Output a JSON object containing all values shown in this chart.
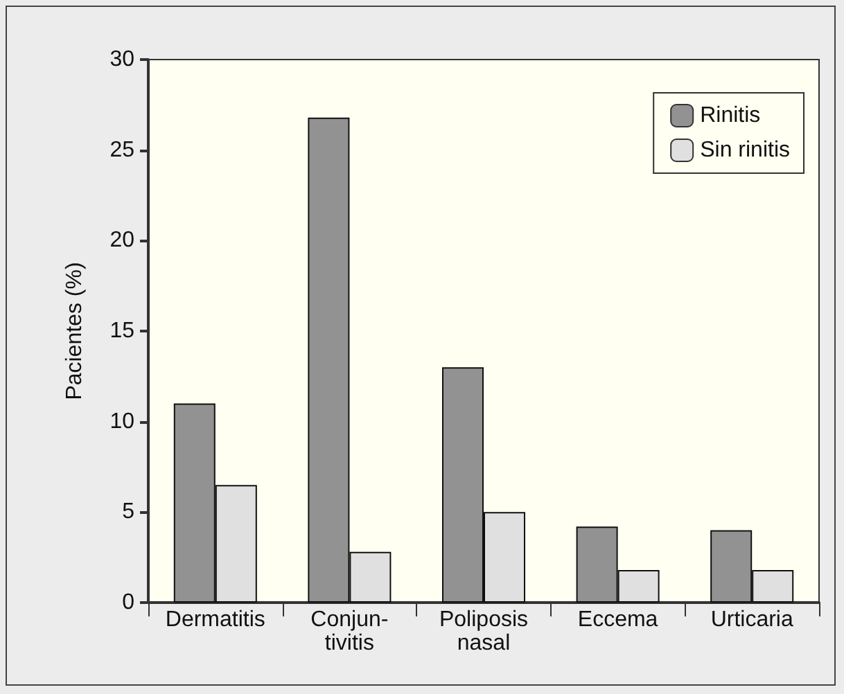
{
  "chart_data": {
    "type": "bar",
    "ylabel": "Pacientes (%)",
    "categories": [
      "Dermatitis",
      "Conjun-\ntivitis",
      "Poliposis\nnasal",
      "Eccema",
      "Urticaria"
    ],
    "series": [
      {
        "name": "Rinitis",
        "color": "#929292",
        "values": [
          11,
          26.8,
          13,
          4.2,
          4
        ]
      },
      {
        "name": "Sin rinitis",
        "color": "#e0e0e0",
        "values": [
          6.5,
          2.8,
          5,
          1.8,
          1.8
        ]
      }
    ],
    "ylim": [
      0,
      30
    ],
    "yticks": [
      0,
      5,
      10,
      15,
      20,
      25,
      30
    ],
    "grid": false,
    "legend": "top right"
  }
}
